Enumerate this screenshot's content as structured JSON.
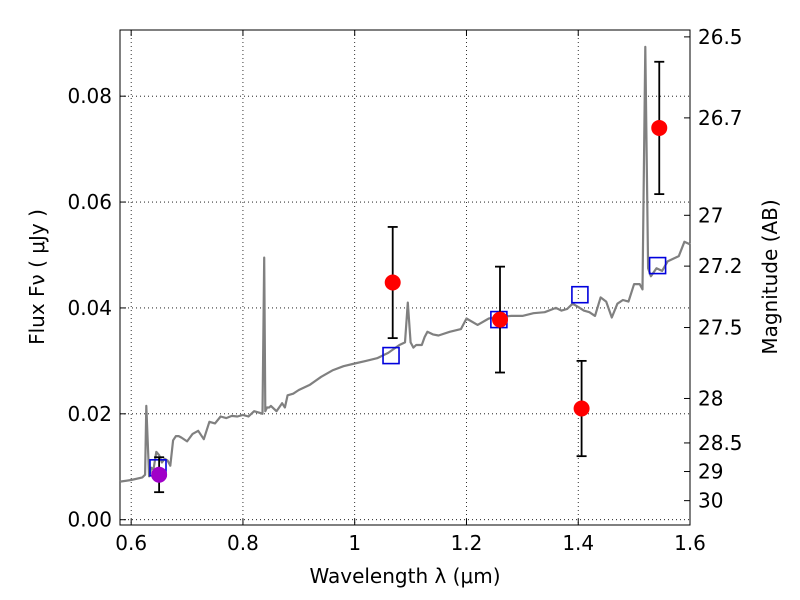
{
  "chart_data": {
    "type": "scatter",
    "title": "",
    "xlabel": "Wavelength  λ (μm)",
    "ylabel": "Flux  Fν  ( μJy )",
    "y2label": "Magnitude (AB)",
    "xlim": [
      0.58,
      1.6
    ],
    "ylim": [
      -0.001,
      0.0925
    ],
    "grid": true,
    "legend": "none",
    "x_ticks": [
      0.6,
      0.8,
      1.0,
      1.2,
      1.4,
      1.6
    ],
    "x_tick_labels": [
      "0.6",
      "0.8",
      "1",
      "1.2",
      "1.4",
      "1.6"
    ],
    "y_ticks": [
      0.0,
      0.02,
      0.04,
      0.06,
      0.08
    ],
    "y_tick_labels": [
      "0.00",
      "0.02",
      "0.04",
      "0.06",
      "0.08"
    ],
    "y2_ticks": [
      {
        "label": "26.5",
        "flux": 0.0912
      },
      {
        "label": "26.7",
        "flux": 0.0759
      },
      {
        "label": "27",
        "flux": 0.0575
      },
      {
        "label": "27.2",
        "flux": 0.0479
      },
      {
        "label": "27.5",
        "flux": 0.0363
      },
      {
        "label": "28",
        "flux": 0.0229
      },
      {
        "label": "28.5",
        "flux": 0.0145
      },
      {
        "label": "29",
        "flux": 0.0091
      },
      {
        "label": "30",
        "flux": 0.0036
      }
    ],
    "series": [
      {
        "kind": "line",
        "color": "#808080",
        "x": [
          0.58,
          0.6,
          0.62,
          0.625,
          0.627,
          0.632,
          0.636,
          0.64,
          0.645,
          0.65,
          0.655,
          0.66,
          0.665,
          0.67,
          0.675,
          0.68,
          0.685,
          0.69,
          0.7,
          0.71,
          0.72,
          0.73,
          0.74,
          0.75,
          0.76,
          0.77,
          0.78,
          0.79,
          0.8,
          0.81,
          0.82,
          0.83,
          0.835,
          0.838,
          0.84,
          0.843,
          0.847,
          0.85,
          0.86,
          0.87,
          0.875,
          0.88,
          0.89,
          0.9,
          0.92,
          0.94,
          0.96,
          0.98,
          1.0,
          1.02,
          1.04,
          1.06,
          1.08,
          1.09,
          1.095,
          1.1,
          1.105,
          1.11,
          1.12,
          1.125,
          1.13,
          1.14,
          1.15,
          1.17,
          1.19,
          1.2,
          1.22,
          1.24,
          1.26,
          1.28,
          1.3,
          1.32,
          1.34,
          1.36,
          1.37,
          1.38,
          1.39,
          1.4,
          1.41,
          1.42,
          1.43,
          1.44,
          1.45,
          1.46,
          1.47,
          1.48,
          1.49,
          1.5,
          1.51,
          1.515,
          1.52,
          1.525,
          1.53,
          1.54,
          1.55,
          1.56,
          1.58,
          1.59,
          1.6
        ],
        "y": [
          0.0072,
          0.0075,
          0.008,
          0.0085,
          0.0215,
          0.0082,
          0.0098,
          0.0095,
          0.0128,
          0.0122,
          0.0108,
          0.0115,
          0.0112,
          0.0102,
          0.015,
          0.0158,
          0.0158,
          0.0155,
          0.0148,
          0.0162,
          0.0168,
          0.0152,
          0.0185,
          0.0182,
          0.0195,
          0.0192,
          0.0196,
          0.0195,
          0.0198,
          0.0195,
          0.0205,
          0.0202,
          0.02,
          0.0495,
          0.0205,
          0.0212,
          0.0212,
          0.0215,
          0.0205,
          0.022,
          0.0212,
          0.0235,
          0.0238,
          0.0245,
          0.0255,
          0.027,
          0.0282,
          0.029,
          0.0295,
          0.03,
          0.0305,
          0.0315,
          0.033,
          0.0335,
          0.041,
          0.0335,
          0.0325,
          0.033,
          0.033,
          0.0345,
          0.0355,
          0.035,
          0.0348,
          0.0355,
          0.036,
          0.038,
          0.0368,
          0.038,
          0.0383,
          0.0385,
          0.0385,
          0.039,
          0.0392,
          0.04,
          0.0395,
          0.0398,
          0.0408,
          0.0402,
          0.0395,
          0.0392,
          0.0385,
          0.042,
          0.0412,
          0.0382,
          0.0408,
          0.0415,
          0.0412,
          0.0445,
          0.0445,
          0.0435,
          0.0893,
          0.0475,
          0.046,
          0.0475,
          0.047,
          0.0488,
          0.0498,
          0.0525,
          0.052
        ]
      },
      {
        "kind": "markers",
        "name": "",
        "marker": "open-square",
        "color": "#0000dd",
        "x": [
          0.648,
          1.065,
          1.258,
          1.403,
          1.542
        ],
        "y": [
          0.0098,
          0.031,
          0.0378,
          0.0425,
          0.048
        ]
      },
      {
        "kind": "markers",
        "name": "",
        "marker": "filled-circle",
        "color": "#ff0000",
        "x": [
          1.068,
          1.26,
          1.406,
          1.545
        ],
        "y": [
          0.0448,
          0.0378,
          0.021,
          0.074
        ],
        "yerr": [
          0.0105,
          0.01,
          0.009,
          0.0125
        ]
      },
      {
        "kind": "markers",
        "name": "",
        "marker": "filled-circle",
        "color": "#a000c8",
        "x": [
          0.65
        ],
        "y": [
          0.0085
        ],
        "yerr": [
          0.0033
        ]
      }
    ]
  }
}
